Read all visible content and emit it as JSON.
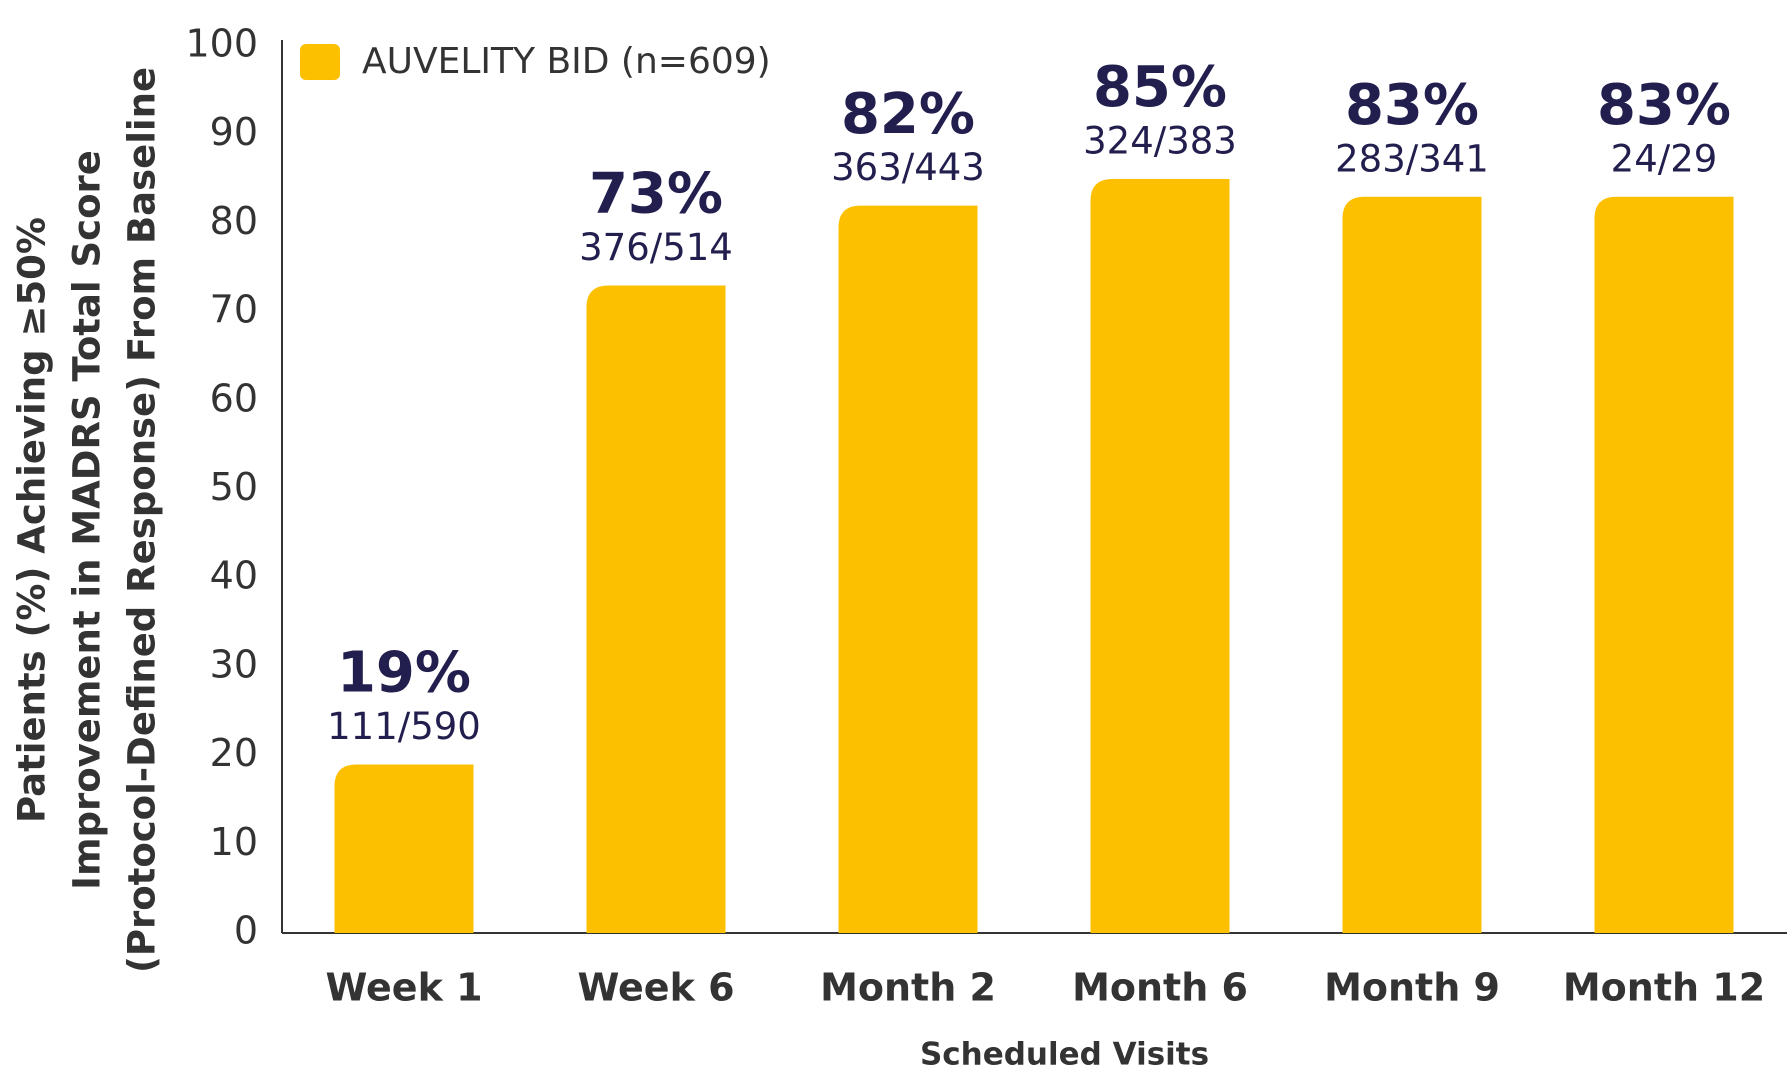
{
  "chart_data": {
    "type": "bar",
    "categories": [
      "Week 1",
      "Week 6",
      "Month 2",
      "Month 6",
      "Month 9",
      "Month 12"
    ],
    "series": [
      {
        "name": "AUVELITY BID (n=609)",
        "color": "#fdc000",
        "values": [
          19,
          73,
          82,
          85,
          83,
          83
        ],
        "value_labels": [
          "19%",
          "73%",
          "82%",
          "85%",
          "83%",
          "83%"
        ]
      }
    ],
    "annotations": [
      "111/590",
      "376/514",
      "363/443",
      "324/383",
      "283/341",
      "24/29"
    ],
    "y_label": [
      "Patients (%) Achieving ≥50%",
      "Improvement in MADRS Total Score",
      "(Protocol-Defined Response) From Baseline"
    ],
    "x_label": "Scheduled Visits",
    "ylim": [
      0,
      100
    ],
    "yticks": [
      0,
      10,
      20,
      30,
      40,
      50,
      60,
      70,
      80,
      90,
      100
    ],
    "grid": false,
    "legend": "top-left"
  }
}
